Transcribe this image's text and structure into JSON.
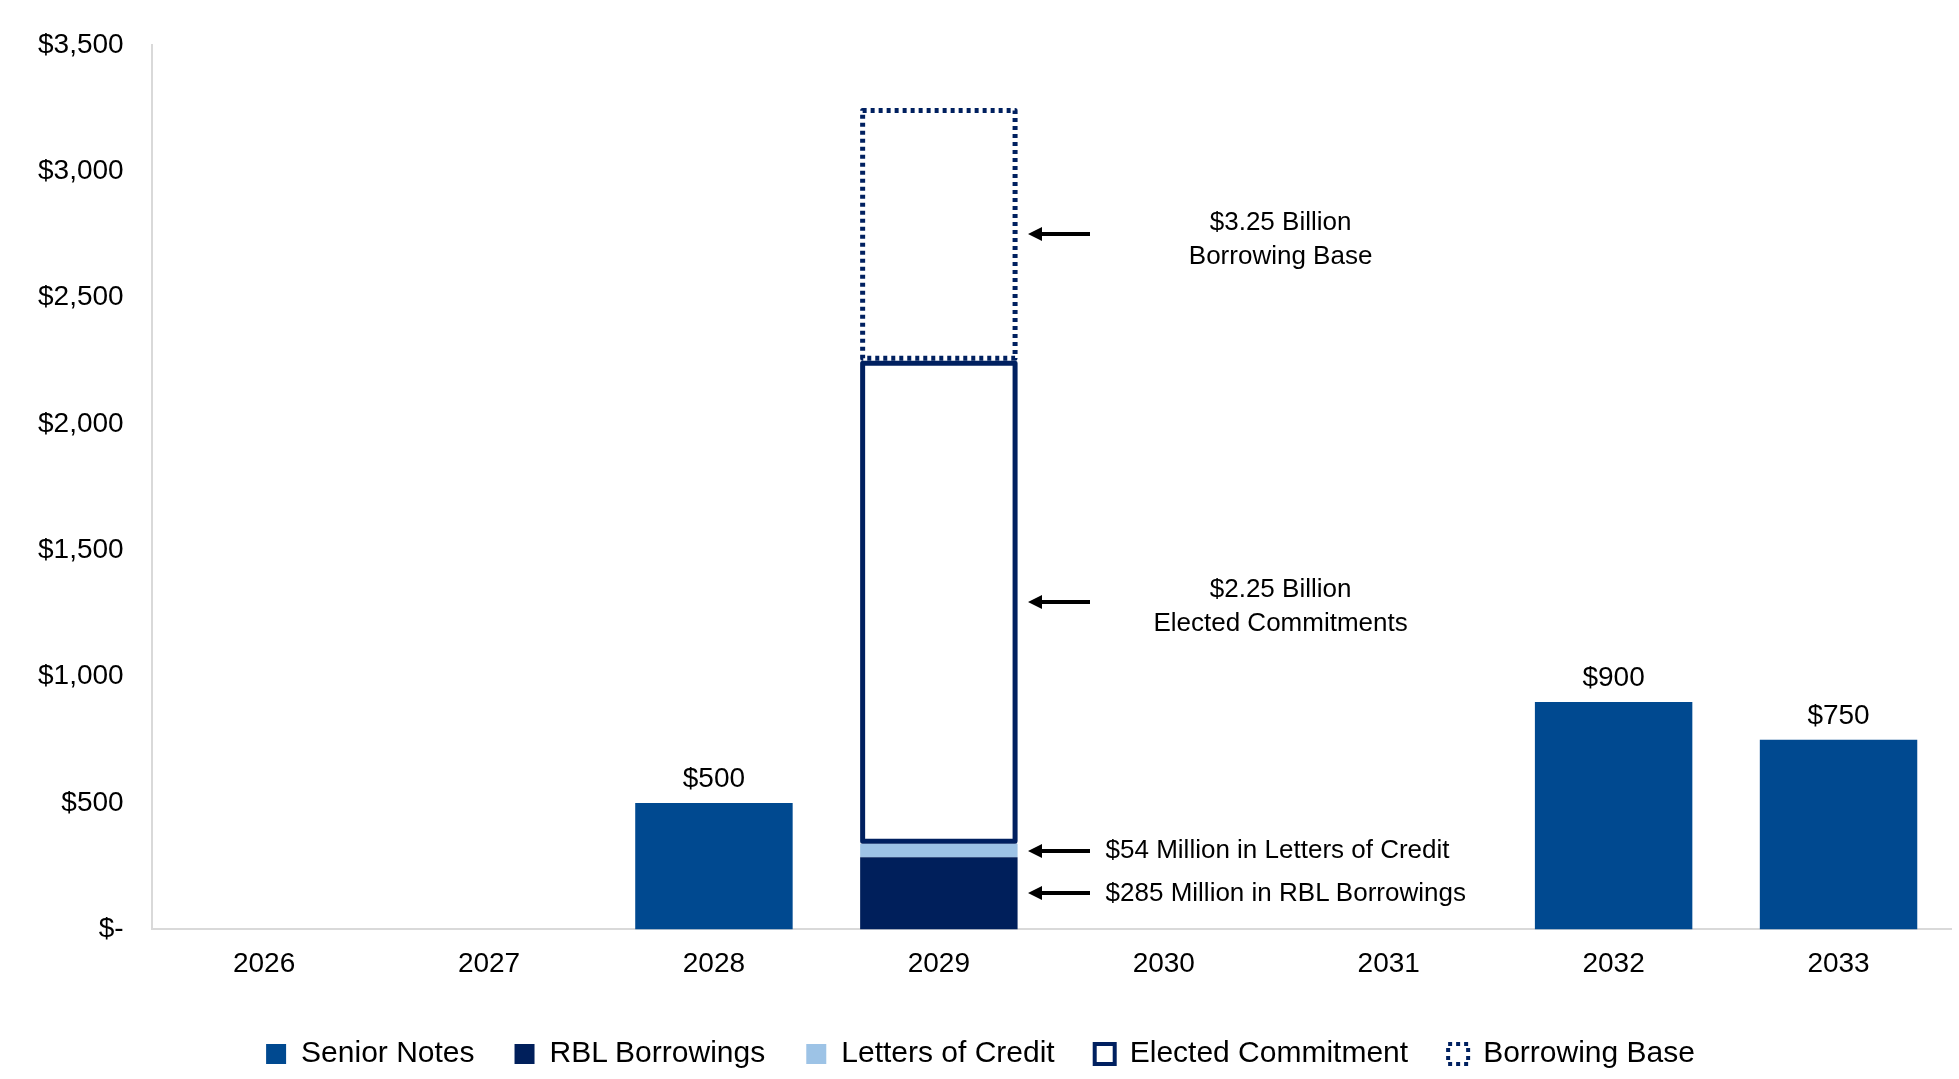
{
  "chart_data": {
    "type": "bar",
    "stacked": true,
    "categories": [
      "2026",
      "2027",
      "2028",
      "2029",
      "2030",
      "2031",
      "2032",
      "2033"
    ],
    "series": [
      {
        "name": "Senior Notes",
        "color": "#004990",
        "values": [
          null,
          null,
          500,
          null,
          null,
          null,
          900,
          750
        ],
        "value_labels": [
          null,
          null,
          "$500",
          null,
          null,
          null,
          "$900",
          "$750"
        ]
      },
      {
        "name": "RBL Borrowings",
        "color": "#001f5b",
        "values": [
          null,
          null,
          null,
          285,
          null,
          null,
          null,
          null
        ]
      },
      {
        "name": "Letters of Credit",
        "color": "#9dc3e6",
        "values": [
          null,
          null,
          null,
          54,
          null,
          null,
          null,
          null
        ]
      },
      {
        "name": "Elected Commitment",
        "color": "#002060",
        "line_style": "solid",
        "values": [
          null,
          null,
          null,
          1911,
          null,
          null,
          null,
          null
        ]
      },
      {
        "name": "Borrowing Base",
        "color": "#002060",
        "line_style": "dotted",
        "values": [
          null,
          null,
          null,
          1000,
          null,
          null,
          null,
          null
        ]
      }
    ],
    "ylim": [
      0,
      3500
    ],
    "yticks": [
      {
        "value": 0,
        "label": "$-"
      },
      {
        "value": 500,
        "label": "$500"
      },
      {
        "value": 1000,
        "label": "$1,000"
      },
      {
        "value": 1500,
        "label": "$1,500"
      },
      {
        "value": 2000,
        "label": "$2,000"
      },
      {
        "value": 2500,
        "label": "$2,500"
      },
      {
        "value": 3000,
        "label": "$3,000"
      },
      {
        "value": 3500,
        "label": "$3,500"
      }
    ],
    "grid": false,
    "legend": "bottom",
    "annotations": [
      "$3.25 Billion\nBorrowing Base",
      "$2.25 Billion\nElected Commitments",
      "$54 Million in Letters of Credit",
      "$285 Million in RBL Borrowings"
    ]
  }
}
